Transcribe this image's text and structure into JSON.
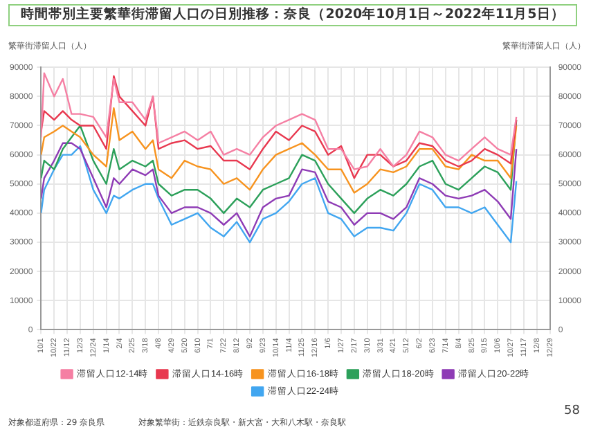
{
  "chart_data": {
    "type": "line",
    "title": "時間帯別主要繁華街滞留人口の日別推移：奈良（2020年10月1日～2022年11月5日）",
    "ylabel": "繁華街滞留人口（人）",
    "y2label": "繁華街滞留人口（人）",
    "x": [
      "2020-10-01",
      "2020-10-06",
      "2020-10-22",
      "2020-11-05",
      "2020-11-19",
      "2020-12-03",
      "2020-12-24",
      "2021-01-14",
      "2021-01-26",
      "2021-02-04",
      "2021-02-25",
      "2021-03-18",
      "2021-03-30",
      "2021-04-08",
      "2021-04-29",
      "2021-05-20",
      "2021-06-10",
      "2021-07-01",
      "2021-07-22",
      "2021-08-12",
      "2021-09-02",
      "2021-09-23",
      "2021-10-14",
      "2021-11-04",
      "2021-11-25",
      "2021-12-16",
      "2022-01-06",
      "2022-01-27",
      "2022-02-17",
      "2022-03-10",
      "2022-03-31",
      "2022-04-21",
      "2022-05-12",
      "2022-06-02",
      "2022-06-23",
      "2022-07-14",
      "2022-08-04",
      "2022-08-25",
      "2022-09-15",
      "2022-10-06",
      "2022-10-27",
      "2022-11-05"
    ],
    "xlim": [
      "2020-10-01",
      "2022-12-29"
    ],
    "xticks": [
      {
        "value": "2020-10-01",
        "label": "10/1"
      },
      {
        "value": "2020-10-22",
        "label": "10/22"
      },
      {
        "value": "2020-11-12",
        "label": "11/12"
      },
      {
        "value": "2020-12-03",
        "label": "12/3"
      },
      {
        "value": "2020-12-24",
        "label": "12/24"
      },
      {
        "value": "2021-01-14",
        "label": "1/14"
      },
      {
        "value": "2021-02-04",
        "label": "2/4"
      },
      {
        "value": "2021-02-25",
        "label": "2/25"
      },
      {
        "value": "2021-03-18",
        "label": "3/18"
      },
      {
        "value": "2021-04-08",
        "label": "4/8"
      },
      {
        "value": "2021-04-29",
        "label": "4/29"
      },
      {
        "value": "2021-05-20",
        "label": "5/20"
      },
      {
        "value": "2021-06-10",
        "label": "6/10"
      },
      {
        "value": "2021-07-01",
        "label": "7/1"
      },
      {
        "value": "2021-07-22",
        "label": "7/22"
      },
      {
        "value": "2021-08-12",
        "label": "8/12"
      },
      {
        "value": "2021-09-02",
        "label": "9/2"
      },
      {
        "value": "2021-09-23",
        "label": "9/23"
      },
      {
        "value": "2021-10-14",
        "label": "10/14"
      },
      {
        "value": "2021-11-04",
        "label": "11/4"
      },
      {
        "value": "2021-11-25",
        "label": "11/25"
      },
      {
        "value": "2021-12-16",
        "label": "12/16"
      },
      {
        "value": "2022-01-06",
        "label": "1/6"
      },
      {
        "value": "2022-01-27",
        "label": "1/27"
      },
      {
        "value": "2022-02-17",
        "label": "2/17"
      },
      {
        "value": "2022-03-10",
        "label": "3/10"
      },
      {
        "value": "2022-03-31",
        "label": "3/31"
      },
      {
        "value": "2022-04-21",
        "label": "4/21"
      },
      {
        "value": "2022-05-12",
        "label": "5/12"
      },
      {
        "value": "2022-06-02",
        "label": "6/2"
      },
      {
        "value": "2022-06-23",
        "label": "6/23"
      },
      {
        "value": "2022-07-14",
        "label": "7/14"
      },
      {
        "value": "2022-08-04",
        "label": "8/4"
      },
      {
        "value": "2022-08-25",
        "label": "8/25"
      },
      {
        "value": "2022-09-15",
        "label": "9/15"
      },
      {
        "value": "2022-10-06",
        "label": "10/6"
      },
      {
        "value": "2022-10-27",
        "label": "10/27"
      },
      {
        "value": "2022-11-17",
        "label": "11/17"
      },
      {
        "value": "2022-12-08",
        "label": "12/8"
      },
      {
        "value": "2022-12-29",
        "label": "12/29"
      }
    ],
    "ylim": [
      0,
      90000
    ],
    "yticks": [
      0,
      10000,
      20000,
      30000,
      40000,
      50000,
      60000,
      70000,
      80000,
      90000
    ],
    "y2lim": [
      0,
      90000
    ],
    "y2ticks": [
      0,
      10000,
      20000,
      30000,
      40000,
      50000,
      60000,
      70000,
      80000,
      90000
    ],
    "grid": true,
    "legend": "bottom",
    "marker": "none",
    "series": [
      {
        "name": "滞留人口12-14時",
        "color": "#f57fa3",
        "values": [
          66000,
          88000,
          80000,
          86000,
          74000,
          74000,
          73000,
          66000,
          86000,
          78000,
          78000,
          72000,
          80000,
          64000,
          66000,
          68000,
          65000,
          68000,
          60000,
          62000,
          60000,
          66000,
          70000,
          72000,
          74000,
          72000,
          62000,
          62000,
          55000,
          56000,
          62000,
          56000,
          60000,
          68000,
          66000,
          60000,
          58000,
          62000,
          66000,
          62000,
          60000,
          73000
        ]
      },
      {
        "name": "滞留人口14-16時",
        "color": "#e8384f",
        "values": [
          68000,
          75000,
          72000,
          75000,
          72000,
          70000,
          70000,
          62000,
          87000,
          80000,
          75000,
          70000,
          80000,
          62000,
          64000,
          65000,
          62000,
          63000,
          58000,
          58000,
          55000,
          62000,
          68000,
          65000,
          70000,
          68000,
          60000,
          63000,
          52000,
          60000,
          60000,
          56000,
          58000,
          64000,
          63000,
          58000,
          56000,
          58000,
          62000,
          60000,
          57000,
          72000
        ]
      },
      {
        "name": "滞留人口16-18時",
        "color": "#f7931e",
        "values": [
          60000,
          66000,
          68000,
          70000,
          68000,
          66000,
          60000,
          56000,
          76000,
          65000,
          68000,
          62000,
          65000,
          55000,
          52000,
          58000,
          56000,
          55000,
          50000,
          52000,
          48000,
          55000,
          60000,
          62000,
          64000,
          60000,
          55000,
          55000,
          47000,
          50000,
          55000,
          54000,
          56000,
          62000,
          62000,
          56000,
          55000,
          60000,
          58000,
          58000,
          52000,
          70000
        ]
      },
      {
        "name": "滞留人口18-20時",
        "color": "#2ca05a",
        "values": [
          52000,
          58000,
          55000,
          62000,
          66000,
          70000,
          58000,
          50000,
          62000,
          55000,
          58000,
          56000,
          58000,
          50000,
          46000,
          48000,
          48000,
          45000,
          40000,
          45000,
          42000,
          48000,
          50000,
          52000,
          60000,
          58000,
          50000,
          45000,
          40000,
          45000,
          48000,
          46000,
          50000,
          56000,
          58000,
          50000,
          48000,
          52000,
          56000,
          54000,
          48000,
          72000
        ]
      },
      {
        "name": "滞留人口20-22時",
        "color": "#8e3bb5",
        "values": [
          45000,
          52000,
          58000,
          64000,
          64000,
          62000,
          52000,
          42000,
          52000,
          50000,
          55000,
          53000,
          55000,
          46000,
          40000,
          42000,
          42000,
          40000,
          36000,
          40000,
          32000,
          42000,
          45000,
          46000,
          55000,
          54000,
          44000,
          42000,
          36000,
          40000,
          40000,
          38000,
          42000,
          52000,
          50000,
          46000,
          45000,
          46000,
          48000,
          44000,
          38000,
          62000
        ]
      },
      {
        "name": "滞留人口22-24時",
        "color": "#41a6f0",
        "values": [
          40000,
          48000,
          55000,
          60000,
          60000,
          63000,
          48000,
          40000,
          46000,
          45000,
          48000,
          50000,
          50000,
          45000,
          36000,
          38000,
          40000,
          35000,
          32000,
          37000,
          30000,
          38000,
          40000,
          44000,
          50000,
          52000,
          40000,
          38000,
          32000,
          35000,
          35000,
          34000,
          40000,
          50000,
          48000,
          42000,
          42000,
          40000,
          42000,
          36000,
          30000,
          51000
        ]
      }
    ],
    "annotations": [
      "対象都道府県：29 奈良県",
      "対象繁華街：近鉄奈良駅・新大宮・大和八木駅・奈良駅",
      "58"
    ]
  }
}
